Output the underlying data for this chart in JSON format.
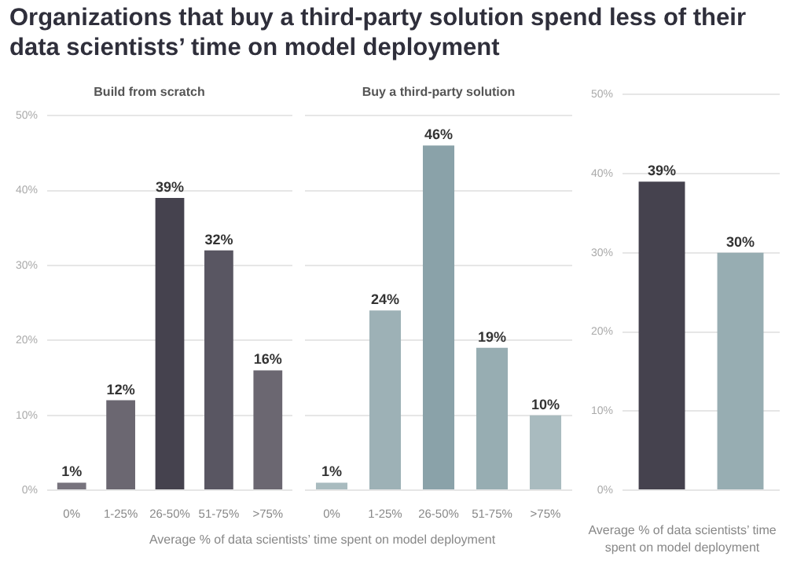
{
  "chart_data": [
    {
      "type": "bar",
      "title": "Organizations that buy a third-party solution spend less of their data scientists’ time on model deployment",
      "subtitle": "Build from scratch",
      "xlabel": "Average % of data scientists’ time spent on model deployment",
      "categories": [
        "0%",
        "1-25%",
        "26-50%",
        "51-75%",
        ">75%"
      ],
      "values": [
        1,
        12,
        39,
        32,
        16
      ],
      "colors": [
        "#77737d",
        "#6b6771",
        "#45424e",
        "#595662",
        "#6b6771"
      ],
      "value_labels": [
        "1%",
        "12%",
        "39%",
        "32%",
        "16%"
      ],
      "ylim": [
        0,
        50
      ],
      "yticks": [
        {
          "value": 0,
          "label": "0%"
        },
        {
          "value": 10,
          "label": "10%"
        },
        {
          "value": 20,
          "label": "20%"
        },
        {
          "value": 30,
          "label": "30%"
        },
        {
          "value": 40,
          "label": "40%"
        },
        {
          "value": 50,
          "label": "50%"
        }
      ],
      "grid": "y"
    },
    {
      "type": "bar",
      "subtitle": "Buy a third-party solution",
      "categories": [
        "0%",
        "1-25%",
        "26-50%",
        "51-75%",
        ">75%"
      ],
      "values": [
        1,
        24,
        46,
        19,
        10
      ],
      "colors": [
        "#a9bbbf",
        "#9db1b6",
        "#8aa2a9",
        "#97adb2",
        "#a9bbbf"
      ],
      "value_labels": [
        "1%",
        "24%",
        "46%",
        "19%",
        "10%"
      ],
      "ylim": [
        0,
        50
      ],
      "yticks": [
        0,
        10,
        20,
        30,
        40,
        50
      ],
      "tick_labels": "x",
      "grid": "y"
    },
    {
      "type": "bar",
      "xlabel": "Average % of data scientists’ time spent on model deployment",
      "categories": [
        null,
        null
      ],
      "values": [
        39,
        30
      ],
      "colors": [
        "#45424e",
        "#97adb2"
      ],
      "value_labels": [
        "39%",
        "30%"
      ],
      "ylim": [
        0,
        50
      ],
      "yticks": [
        {
          "value": 0,
          "label": "0%"
        },
        {
          "value": 10,
          "label": "10%"
        },
        {
          "value": 20,
          "label": "20%"
        },
        {
          "value": 30,
          "label": "30%"
        },
        {
          "value": 40,
          "label": "40%"
        },
        {
          "value": 50,
          "label": "50%"
        }
      ],
      "grid": "y"
    }
  ]
}
